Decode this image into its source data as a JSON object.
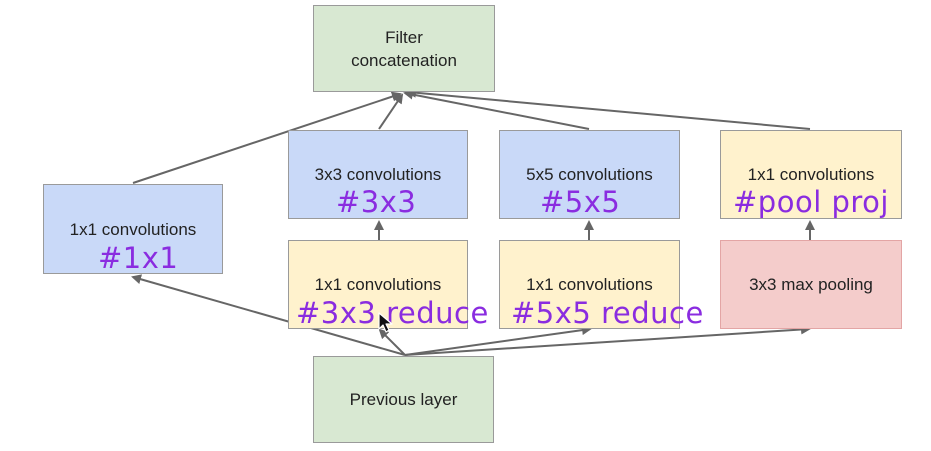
{
  "diagram": {
    "nodes": {
      "filter_concat": {
        "label": "Filter\nconcatenation"
      },
      "conv1x1_branch": {
        "label": "1x1 convolutions"
      },
      "conv3x3": {
        "label": "3x3 convolutions"
      },
      "conv5x5": {
        "label": "5x5 convolutions"
      },
      "conv1x1_pool_proj": {
        "label": "1x1 convolutions"
      },
      "reduce3x3": {
        "label": "1x1 convolutions"
      },
      "reduce5x5": {
        "label": "1x1 convolutions"
      },
      "max_pool": {
        "label": "3x3 max pooling"
      },
      "previous_layer": {
        "label": "Previous layer"
      }
    },
    "annotations": {
      "a1x1": "#1x1",
      "a3x3": "#3x3",
      "a5x5": "#5x5",
      "apool_proj": "#pool proj",
      "a3x3_reduce": "#3x3 reduce",
      "a5x5_reduce": "#5x5 reduce"
    }
  },
  "colors": {
    "green": "#d8e8d2",
    "blue": "#c9d9f8",
    "yellow": "#fff2cd",
    "red": "#f4cccb",
    "arrow": "#666666",
    "annotation": "#8a2ce0"
  },
  "icons": {
    "cursor": "mouse-pointer-icon"
  }
}
